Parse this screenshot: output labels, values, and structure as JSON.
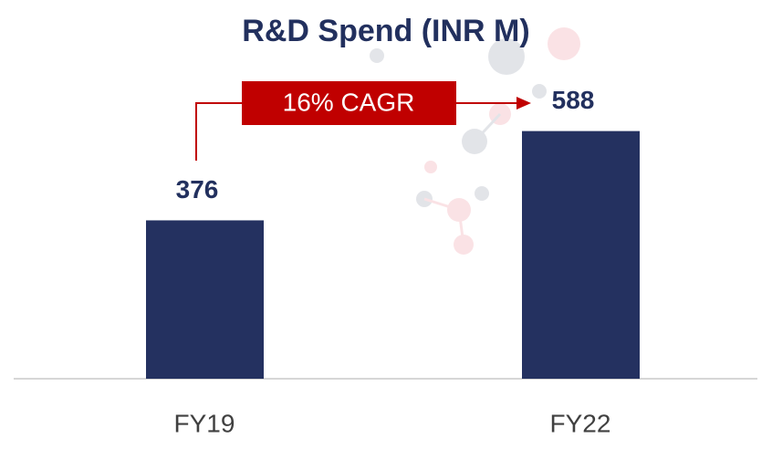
{
  "chart_data": {
    "type": "bar",
    "title": "R&D Spend (INR M)",
    "categories": [
      "FY19",
      "FY22"
    ],
    "values": [
      376,
      588
    ],
    "color": "#243160",
    "ylim": [
      0,
      650
    ],
    "annotation": "16% CAGR"
  }
}
